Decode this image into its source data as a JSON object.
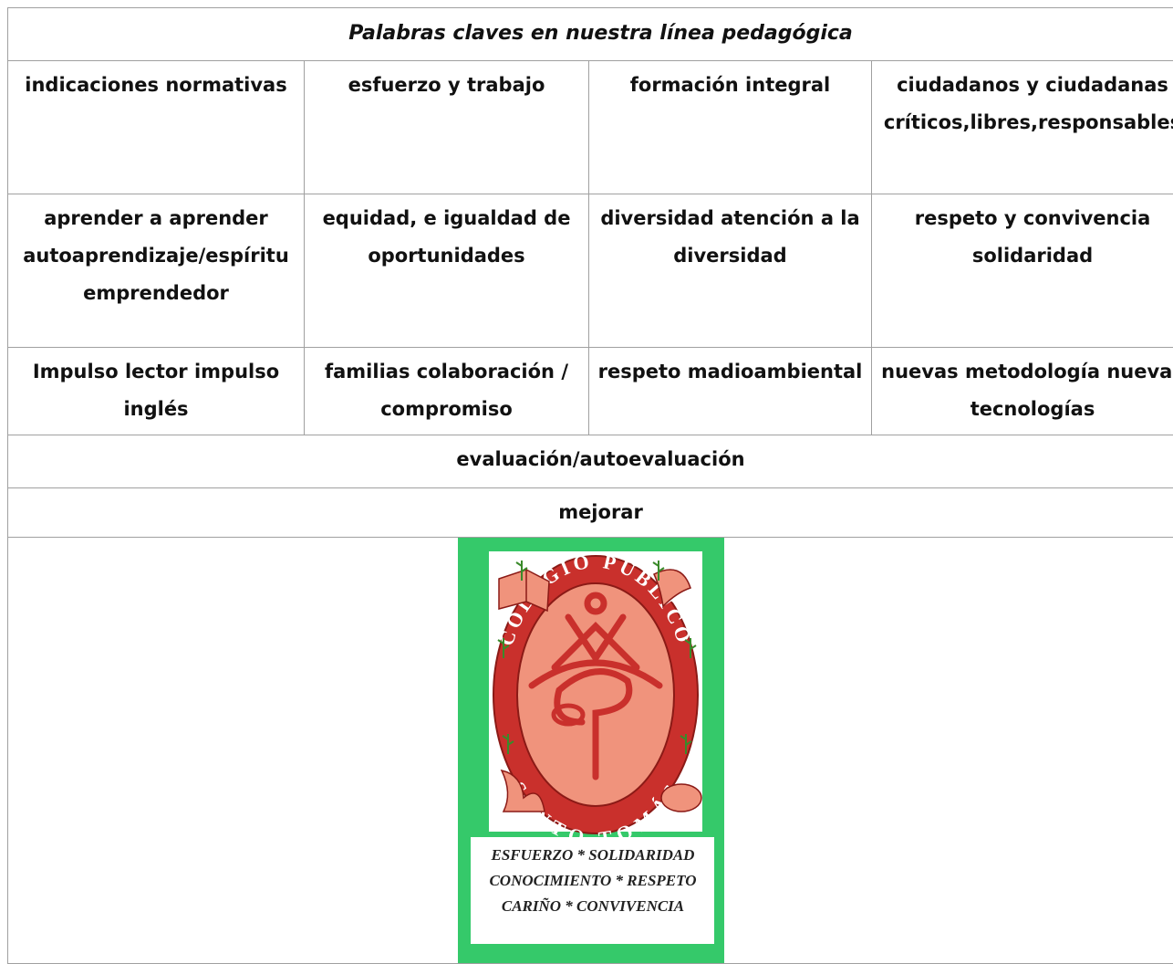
{
  "table": {
    "title": "Palabras claves en nuestra línea pedagógica",
    "rows": [
      [
        "indicaciones normativas",
        "esfuerzo y trabajo",
        "formación integral",
        "ciudadanos y ciudadanas críticos,libres,responsables"
      ],
      [
        "aprender a aprender autoaprendizaje/espíritu emprendedor",
        "equidad, e igualdad de oportunidades",
        "diversidad atención a la diversidad",
        "respeto y convivencia solidaridad"
      ],
      [
        "Impulso lector impulso inglés",
        "familias colaboración / compromiso",
        "respeto madioambiental",
        "nuevas metodología nuevas tecnologías"
      ],
      [
        "evaluación/autoevaluación"
      ],
      [
        "mejorar"
      ]
    ]
  },
  "logo": {
    "ring_top": "COLEGIO PÚBLICO",
    "ring_bottom": "SANTO TOMÁS",
    "motto": [
      "ESFUERZO * SOLIDARIDAD",
      "CONOCIMIENTO * RESPETO",
      "CARIÑO * CONVIVENCIA"
    ]
  }
}
